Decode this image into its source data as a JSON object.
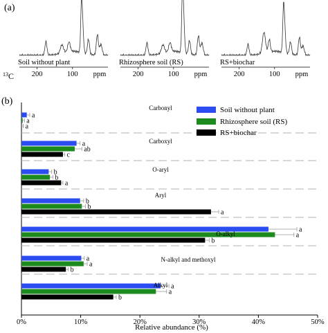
{
  "panel_a": {
    "label": "(a)",
    "nucleus_sup": "13",
    "nucleus": "C",
    "spectra": [
      {
        "name": "Soil without plant",
        "ticks": [
          {
            "label": "200",
            "ppm": 200
          },
          {
            "label": "100",
            "ppm": 100
          }
        ],
        "unit": "ppm"
      },
      {
        "name": "Rhizosphere soil (RS)",
        "ticks": [
          {
            "label": "200",
            "ppm": 200
          },
          {
            "label": "100",
            "ppm": 100
          }
        ],
        "unit": "ppm"
      },
      {
        "name": "RS+biochar",
        "ticks": [
          {
            "label": "200",
            "ppm": 200
          },
          {
            "label": "100",
            "ppm": 100
          }
        ],
        "unit": "ppm"
      }
    ]
  },
  "panel_b": {
    "label": "(b)"
  },
  "colors": {
    "soil_without_plant": "#2b4cf0",
    "rhizosphere_soil": "#1c8a1c",
    "rs_biochar": "#000000",
    "divider": "#b0b0b0"
  },
  "chart_data": {
    "type": "bar",
    "orientation": "horizontal",
    "xlabel": "Relative abundance (%)",
    "xlim": [
      0,
      50
    ],
    "xticks": [
      {
        "value": 0,
        "label": "0%"
      },
      {
        "value": 10,
        "label": "10%"
      },
      {
        "value": 20,
        "label": "20%"
      },
      {
        "value": 30,
        "label": "30%"
      },
      {
        "value": 40,
        "label": "40%"
      },
      {
        "value": 50,
        "label": "50%"
      }
    ],
    "legend_position": "top-right",
    "categories": [
      "Carbonyl",
      "Carboxyl",
      "O-aryl",
      "Aryl",
      "O-alkyl",
      "N-alkyl and methoxyl",
      "Alkyl"
    ],
    "series": [
      {
        "name": "Soil without plant",
        "color": "#2b4cf0",
        "values": [
          0.9,
          9.3,
          4.6,
          9.9,
          41.7,
          10.1,
          23.5
        ],
        "errors": [
          0.5,
          0.6,
          0.5,
          0.6,
          4.8,
          0.5,
          1.4
        ],
        "letters": [
          "a",
          "a",
          "b",
          "b",
          "a",
          "a",
          "a"
        ]
      },
      {
        "name": "Rhizosphere soil (RS)",
        "color": "#1c8a1c",
        "values": [
          0.2,
          9.0,
          4.8,
          10.2,
          42.8,
          10.5,
          22.7
        ],
        "errors": [
          0.3,
          1.2,
          0.5,
          0.6,
          3.2,
          0.6,
          1.8
        ],
        "letters": [
          "a",
          "ab",
          "b",
          "b",
          "a",
          "a",
          "a"
        ]
      },
      {
        "name": "RS+biochar",
        "color": "#000000",
        "values": [
          0.0,
          7.0,
          6.7,
          32.0,
          31.0,
          7.5,
          15.5
        ],
        "errors": [
          0.3,
          0.3,
          0.3,
          1.3,
          0.7,
          0.4,
          0.5
        ],
        "letters": [
          "a",
          "c",
          "a",
          "a",
          "b",
          "b",
          "b"
        ]
      }
    ]
  }
}
